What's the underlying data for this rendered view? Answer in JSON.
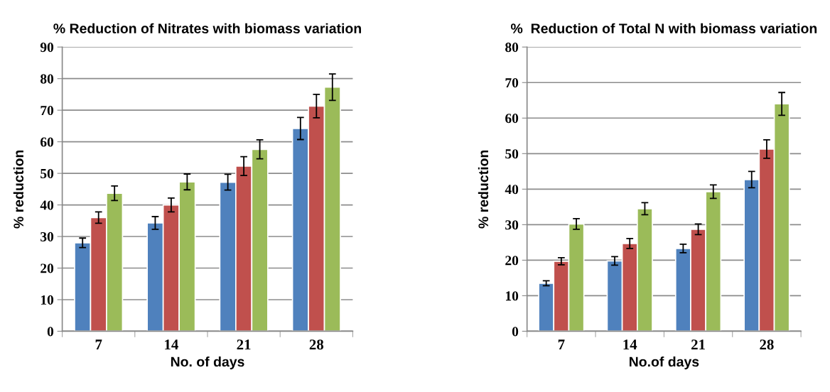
{
  "chart_data": [
    {
      "type": "bar",
      "title": "% Reduction of Nitrates with biomass variation",
      "xlabel": "No. of days",
      "ylabel": "% reduction",
      "categories": [
        "7",
        "14",
        "21",
        "28"
      ],
      "ylim": [
        0,
        90
      ],
      "yticks": [
        0,
        10,
        20,
        30,
        40,
        50,
        60,
        70,
        80,
        90
      ],
      "grid": "y",
      "legend": false,
      "series": [
        {
          "color": "#4f81bd",
          "values": [
            28,
            34.3,
            47.2,
            64.2
          ],
          "errors": [
            1.5,
            2,
            2.5,
            3.5
          ]
        },
        {
          "color": "#c0504d",
          "values": [
            36,
            40,
            52.3,
            71.3
          ],
          "errors": [
            1.8,
            2.2,
            3,
            3.7
          ]
        },
        {
          "color": "#9bbb59",
          "values": [
            43.7,
            47.3,
            57.6,
            77.3
          ],
          "errors": [
            2.3,
            2.5,
            3,
            4.2
          ]
        }
      ]
    },
    {
      "type": "bar",
      "title": "%  Reduction of Total N with biomass variation",
      "xlabel": "No.of days",
      "ylabel": "% reduction",
      "categories": [
        "7",
        "14",
        "21",
        "28"
      ],
      "ylim": [
        0,
        80
      ],
      "yticks": [
        0,
        10,
        20,
        30,
        40,
        50,
        60,
        70,
        80
      ],
      "grid": "y",
      "legend": false,
      "series": [
        {
          "color": "#4f81bd",
          "values": [
            13.5,
            19.8,
            23.3,
            42.7
          ],
          "errors": [
            0.7,
            1.2,
            1.2,
            2.3
          ]
        },
        {
          "color": "#c0504d",
          "values": [
            19.7,
            24.7,
            28.7,
            51.3
          ],
          "errors": [
            1,
            1.4,
            1.5,
            2.6
          ]
        },
        {
          "color": "#9bbb59",
          "values": [
            30.2,
            34.5,
            39.3,
            64
          ],
          "errors": [
            1.5,
            1.7,
            1.9,
            3.2
          ]
        }
      ]
    }
  ]
}
